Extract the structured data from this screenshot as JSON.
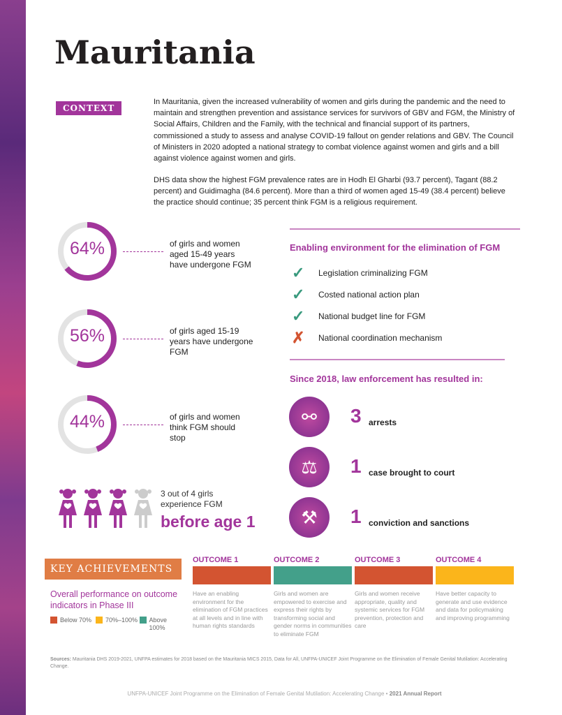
{
  "title": "Mauritania",
  "context_label": "CONTEXT",
  "context_paragraphs": [
    "In Mauritania, given the increased vulnerability of women and girls during the pandemic and the need to maintain and strengthen prevention and assistance services for survivors of GBV and FGM, the Ministry of Social Affairs, Children and the Family, with the technical and financial support of its partners, commissioned a study to assess and analyse COVID-19 fallout on gender relations and GBV. The Council of Ministers in 2020 adopted a national strategy to combat violence against women and girls and a bill against violence against women and girls.",
    "DHS data show the highest FGM prevalence rates are in Hodh El Gharbi (93.7 percent), Tagant (88.2 percent) and Guidimagha (84.6 percent). More than a third of women aged 15-49 (38.4 percent) believe the practice should continue; 35 percent think FGM is a religious requirement."
  ],
  "stats": [
    {
      "value": "64%",
      "fraction": 0.64,
      "label": "of girls and women aged 15-49 years have undergone FGM"
    },
    {
      "value": "56%",
      "fraction": 0.56,
      "label": "of girls aged 15-19 years have undergone FGM"
    },
    {
      "value": "44%",
      "fraction": 0.44,
      "label": "of girls and women think FGM should stop"
    }
  ],
  "girls": {
    "text": "3 out of 4 girls experience FGM",
    "highlight": "before age 1",
    "filled": 3,
    "total": 4
  },
  "enabling": {
    "heading": "Enabling environment for the elimination of FGM",
    "items": [
      {
        "label": "Legislation criminalizing FGM",
        "status": "check"
      },
      {
        "label": "Costed national action plan",
        "status": "check"
      },
      {
        "label": "National budget line for FGM",
        "status": "check"
      },
      {
        "label": "National coordination mechanism",
        "status": "cross"
      }
    ]
  },
  "law": {
    "heading": "Since 2018, law enforcement has resulted in:",
    "items": [
      {
        "number": "3",
        "label": "arrests",
        "icon": "handcuffs-icon"
      },
      {
        "number": "1",
        "label": "case brought to court",
        "icon": "scales-icon"
      },
      {
        "number": "1",
        "label": "conviction and sanctions",
        "icon": "gavel-icon"
      }
    ]
  },
  "achievements": {
    "label": "KEY ACHIEVEMENTS",
    "subtitle": "Overall performance on outcome indicators in Phase III",
    "legend": [
      {
        "label": "Below 70%",
        "color": "#d35431"
      },
      {
        "label": "70%–100%",
        "color": "#fbb51b"
      },
      {
        "label": "Above 100%",
        "color": "#43a08a"
      }
    ],
    "outcomes": [
      {
        "title": "OUTCOME 1",
        "color": "#d35431",
        "text": "Have an enabling environment for the elimination of FGM practices at all levels and in line with human rights standards"
      },
      {
        "title": "OUTCOME 2",
        "color": "#43a08a",
        "text": "Girls and women are empowered to exercise and express their rights by transforming social and gender norms in communities to eliminate FGM"
      },
      {
        "title": "OUTCOME 3",
        "color": "#d35431",
        "text": "Girls and women receive appropriate, quality and systemic services for FGM prevention, protection and care"
      },
      {
        "title": "OUTCOME 4",
        "color": "#fbb51b",
        "text": "Have better capacity to generate and use evidence and data for policymaking and improving programming"
      }
    ]
  },
  "sources": {
    "label": "Sources:",
    "text": "Mauritania DHS 2019-2021, UNFPA estimates for 2018 based on the Mauritania MICS 2015, Data for All, UNFPA-UNICEF Joint Programme on the Elimination of Female Genital Mutilation: Accelerating Change."
  },
  "footer": {
    "text": "UNFPA-UNICEF Joint Programme on the Elimination of Female Genital Mutilation: Accelerating Change",
    "sep": "•",
    "report": "2021 Annual Report"
  },
  "colors": {
    "accent": "#a2359b",
    "check": "#3a9a7e",
    "cross": "#d35431"
  }
}
